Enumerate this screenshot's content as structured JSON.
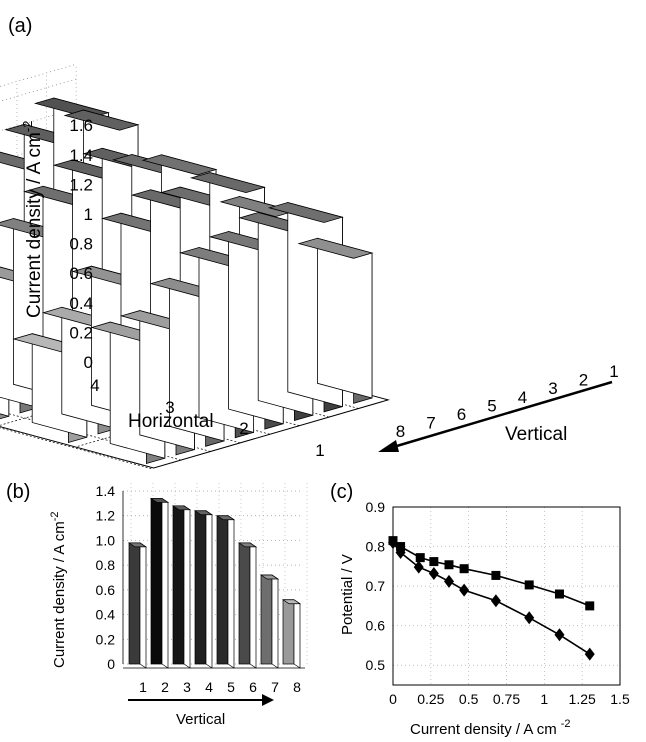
{
  "chart_data": [
    {
      "panel": "(a)",
      "type": "bar3d",
      "zlabel": "Current density / A cm",
      "zlabel_sup": "-2",
      "xlabel": "Horizontal",
      "ylabel": "Vertical",
      "zlim": [
        0,
        1.6
      ],
      "zticks": [
        "0",
        "0.2",
        "0.4",
        "0.6",
        "0.8",
        "1",
        "1.2",
        "1.4",
        "1.6"
      ],
      "horizontal": [
        "1",
        "2",
        "3",
        "4"
      ],
      "vertical": [
        "1",
        "2",
        "3",
        "4",
        "5",
        "6",
        "7",
        "8"
      ],
      "values": [
        {
          "horizontal": "1",
          "vertical": "8",
          "value": 0.82
        },
        {
          "horizontal": "1",
          "vertical": "7",
          "value": 0.84
        },
        {
          "horizontal": "1",
          "vertical": "6",
          "value": 1.0
        },
        {
          "horizontal": "1",
          "vertical": "5",
          "value": 1.15
        },
        {
          "horizontal": "1",
          "vertical": "4",
          "value": 1.2
        },
        {
          "horizontal": "1",
          "vertical": "3",
          "value": 1.27
        },
        {
          "horizontal": "1",
          "vertical": "2",
          "value": 1.28
        },
        {
          "horizontal": "1",
          "vertical": "1",
          "value": 0.98
        },
        {
          "horizontal": "2",
          "vertical": "8",
          "value": 0.6
        },
        {
          "horizontal": "2",
          "vertical": "7",
          "value": 0.72
        },
        {
          "horizontal": "2",
          "vertical": "6",
          "value": 0.94
        },
        {
          "horizontal": "2",
          "vertical": "5",
          "value": 1.24
        },
        {
          "horizontal": "2",
          "vertical": "4",
          "value": 1.34
        },
        {
          "horizontal": "2",
          "vertical": "3",
          "value": 1.3
        },
        {
          "horizontal": "2",
          "vertical": "2",
          "value": 1.34
        },
        {
          "horizontal": "2",
          "vertical": "1",
          "value": 1.12
        },
        {
          "horizontal": "3",
          "vertical": "8",
          "value": 0.76
        },
        {
          "horizontal": "3",
          "vertical": "7",
          "value": 0.88
        },
        {
          "horizontal": "3",
          "vertical": "6",
          "value": 1.12
        },
        {
          "horizontal": "3",
          "vertical": "5",
          "value": 1.28
        },
        {
          "horizontal": "3",
          "vertical": "4",
          "value": 1.4
        },
        {
          "horizontal": "3",
          "vertical": "3",
          "value": 1.42
        },
        {
          "horizontal": "3",
          "vertical": "2",
          "value": 1.32
        },
        {
          "horizontal": "3",
          "vertical": "1",
          "value": 1.26
        },
        {
          "horizontal": "4",
          "vertical": "8",
          "value": 0.18
        },
        {
          "horizontal": "4",
          "vertical": "7",
          "value": 0.8
        },
        {
          "horizontal": "4",
          "vertical": "6",
          "value": 1.0
        },
        {
          "horizontal": "4",
          "vertical": "5",
          "value": 1.2
        },
        {
          "horizontal": "4",
          "vertical": "4",
          "value": 1.32
        },
        {
          "horizontal": "4",
          "vertical": "3",
          "value": 1.44
        },
        {
          "horizontal": "4",
          "vertical": "2",
          "value": 1.56
        },
        {
          "horizontal": "4",
          "vertical": "1",
          "value": 1.42
        }
      ]
    },
    {
      "panel": "(b)",
      "type": "bar",
      "ylabel": "Current density / A cm",
      "ylabel_sup": "-2",
      "xlabel": "Vertical",
      "ylim": [
        0,
        1.4
      ],
      "yticks": [
        "0",
        "0.2",
        "0.4",
        "0.6",
        "0.8",
        "1.0",
        "1.2",
        "1.4"
      ],
      "categories": [
        "1",
        "2",
        "3",
        "4",
        "5",
        "6",
        "7",
        "8"
      ],
      "values": [
        0.98,
        1.34,
        1.28,
        1.24,
        1.2,
        0.98,
        0.72,
        0.52
      ],
      "shades": [
        "#3a3a3a",
        "#0a0a0a",
        "#161616",
        "#202020",
        "#2a2a2a",
        "#4a4a4a",
        "#6e6e6e",
        "#9a9a9a"
      ]
    },
    {
      "panel": "(c)",
      "type": "line",
      "xlabel": "Current density / A cm",
      "xlabel_sup": "-2",
      "ylabel": "Potential / V",
      "xlim": [
        0,
        1.5
      ],
      "ylim": [
        0.45,
        0.9
      ],
      "xticks": [
        "0",
        "0.25",
        "0.5",
        "0.75",
        "1",
        "1.25",
        "1.5"
      ],
      "yticks": [
        "0.5",
        "0.6",
        "0.7",
        "0.8",
        "0.9"
      ],
      "series": [
        {
          "marker": "square",
          "x": [
            0,
            0.05,
            0.18,
            0.27,
            0.37,
            0.47,
            0.68,
            0.9,
            1.1,
            1.3
          ],
          "y": [
            0.815,
            0.8,
            0.772,
            0.762,
            0.754,
            0.744,
            0.727,
            0.703,
            0.68,
            0.65
          ]
        },
        {
          "marker": "diamond",
          "x": [
            0,
            0.05,
            0.17,
            0.27,
            0.37,
            0.47,
            0.68,
            0.9,
            1.1,
            1.3
          ],
          "y": [
            0.81,
            0.785,
            0.748,
            0.732,
            0.712,
            0.69,
            0.663,
            0.62,
            0.577,
            0.528
          ]
        }
      ]
    }
  ]
}
